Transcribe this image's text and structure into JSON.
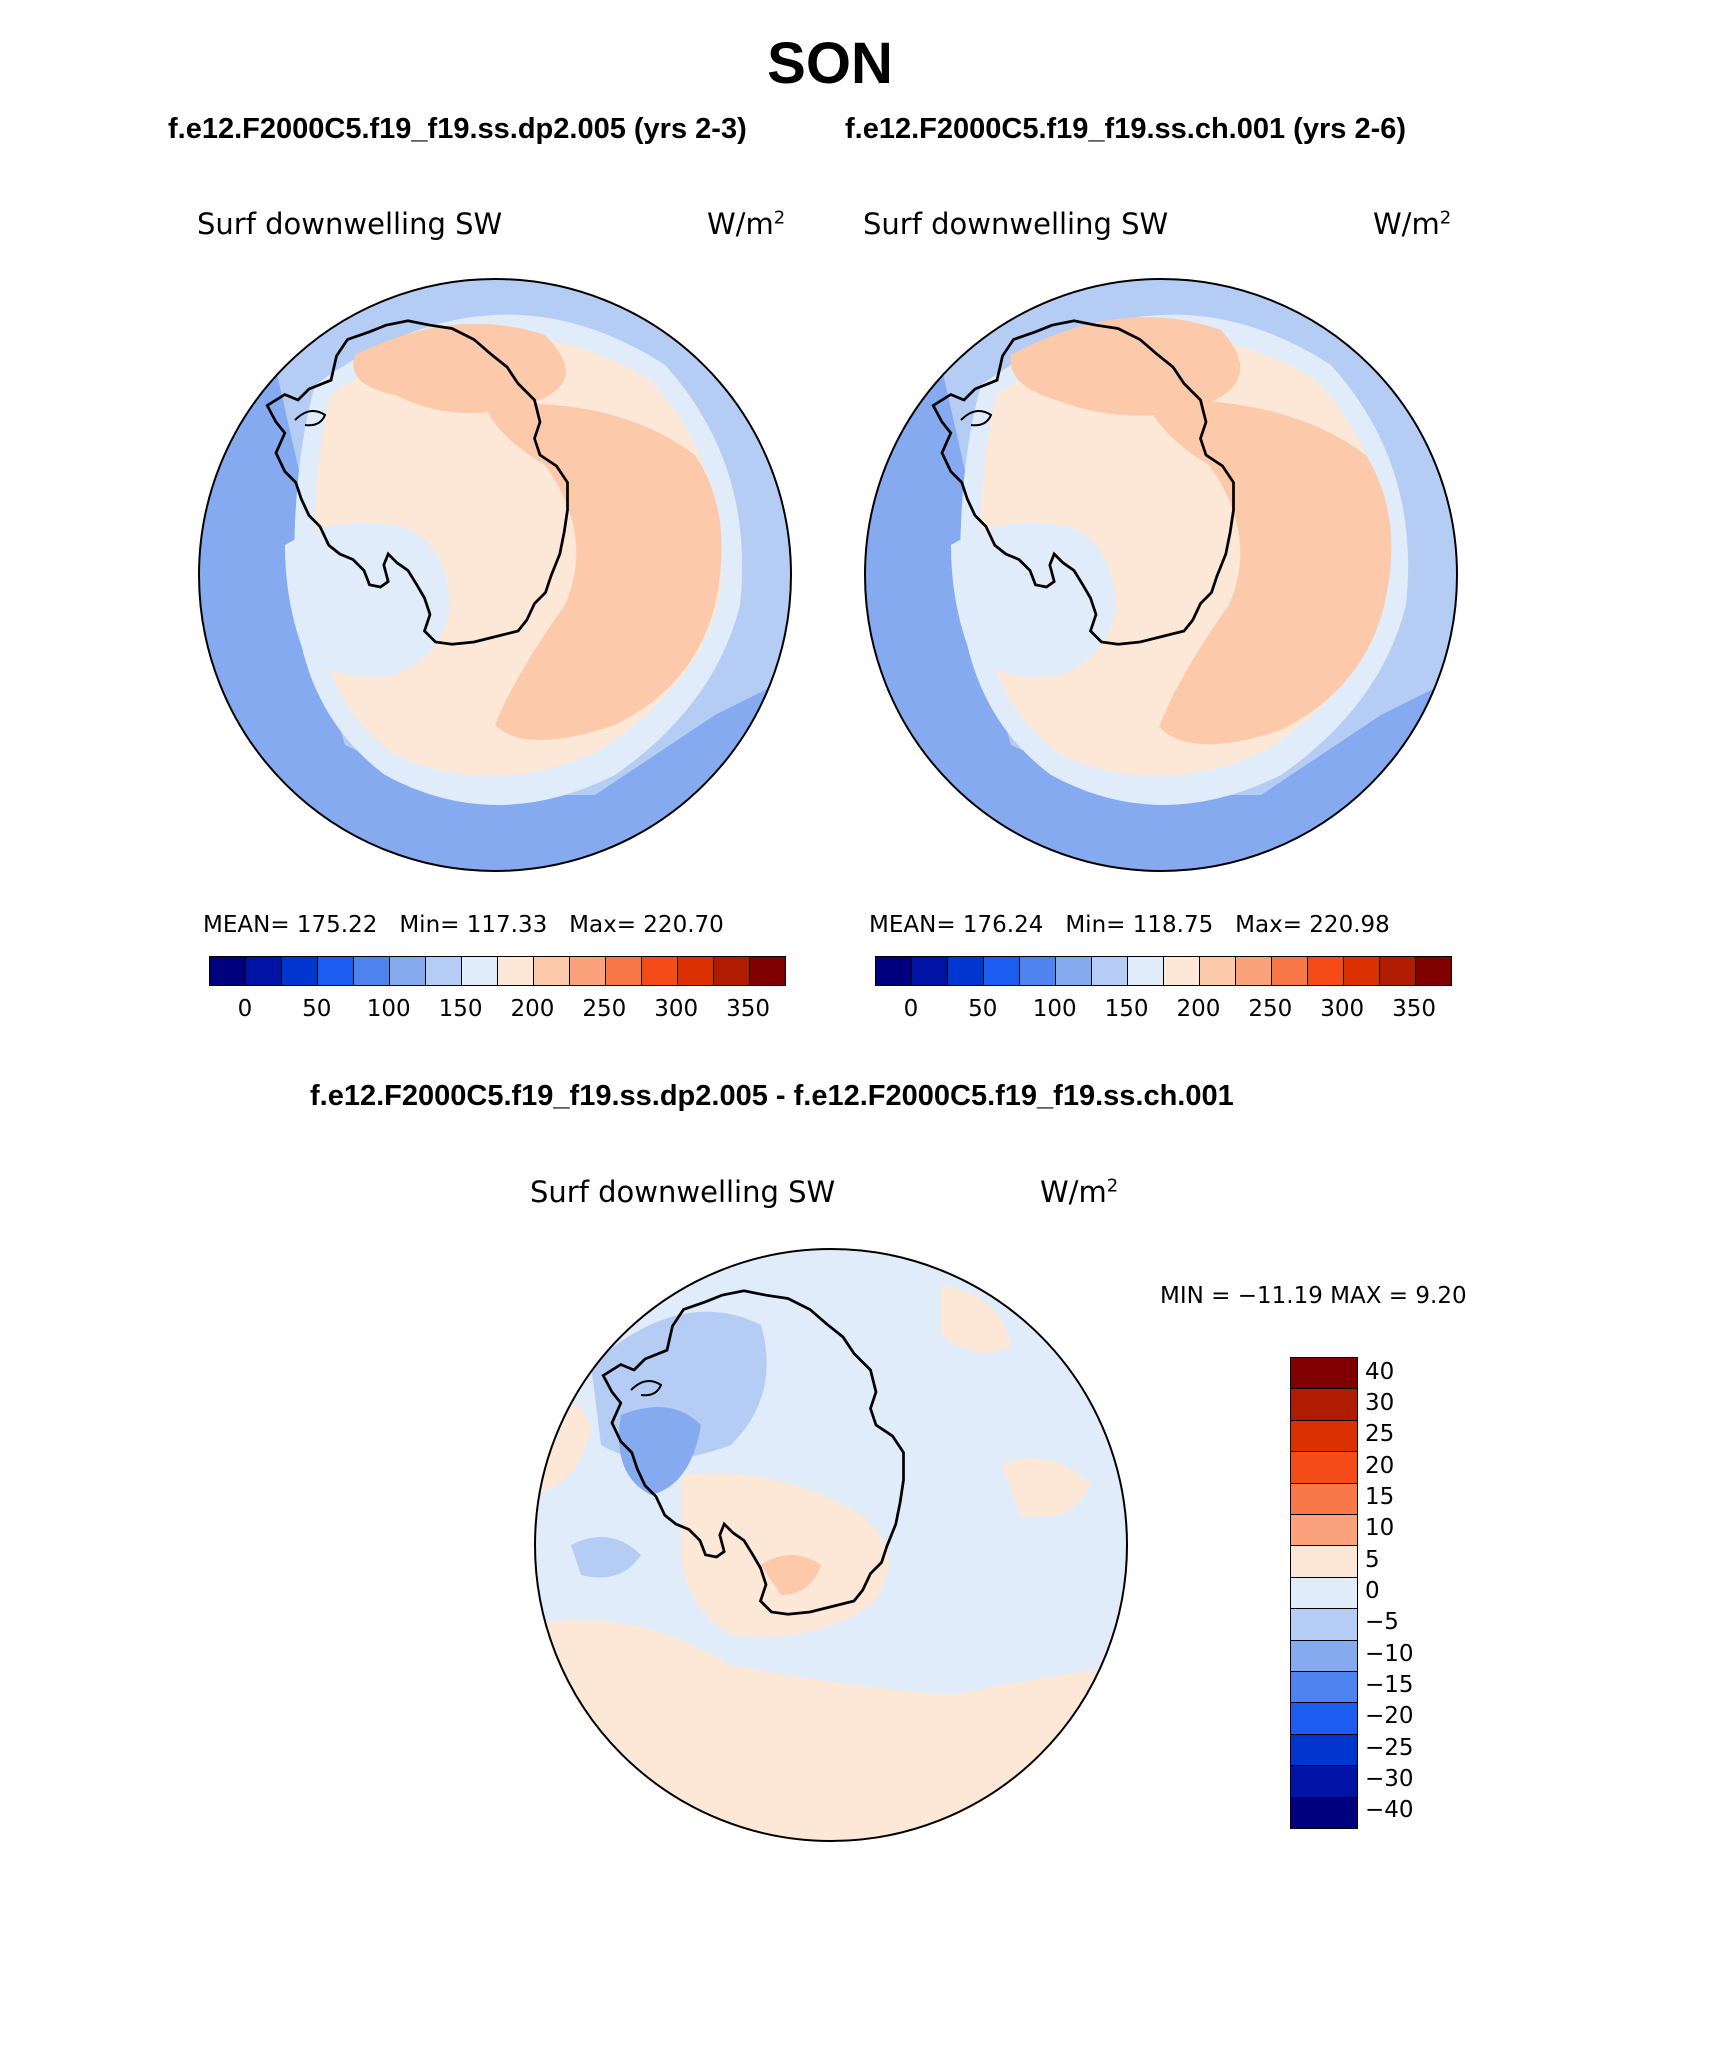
{
  "page": {
    "title": "SON"
  },
  "top_titles": {
    "left": "f.e12.F2000C5.f19_f19.ss.dp2.005 (yrs 2-3)",
    "right": "f.e12.F2000C5.f19_f19.ss.ch.001 (yrs 2-6)"
  },
  "diff_title": "f.e12.F2000C5.f19_f19.ss.dp2.005 - f.e12.F2000C5.f19_f19.ss.ch.001",
  "panels": [
    {
      "variable": "Surf downwelling SW",
      "units": "W/m",
      "units_sup": "2",
      "mean_label": "MEAN=",
      "mean": "175.22",
      "min_label": "Min=",
      "min": "117.33",
      "max_label": "Max=",
      "max": "220.70"
    },
    {
      "variable": "Surf downwelling SW",
      "units": "W/m",
      "units_sup": "2",
      "mean_label": "MEAN=",
      "mean": "176.24",
      "min_label": "Min=",
      "min": "118.75",
      "max_label": "Max=",
      "max": "220.98"
    }
  ],
  "diff_panel": {
    "variable": "Surf downwelling SW",
    "units": "W/m",
    "units_sup": "2",
    "minmax": "MIN = −11.19 MAX =    9.20"
  },
  "abs_colorbar": {
    "colors": [
      "#00007f",
      "#0013a5",
      "#0036d0",
      "#1c5cf0",
      "#4f83ef",
      "#85aaf0",
      "#b5cdf5",
      "#e1ecfa",
      "#fde7d6",
      "#fcc9ab",
      "#fba17b",
      "#fa7747",
      "#f54b18",
      "#db3100",
      "#b01c00",
      "#800000"
    ],
    "labels": [
      "0",
      "50",
      "100",
      "150",
      "200",
      "250",
      "300",
      "350"
    ]
  },
  "diff_colorbar": {
    "colors": [
      "#800000",
      "#b01c00",
      "#db3100",
      "#f54b18",
      "#fa7747",
      "#fba17b",
      "#fde7d6",
      "#e1ecfa",
      "#b5cdf5",
      "#85aaf0",
      "#4f83ef",
      "#1c5cf0",
      "#0036d0",
      "#0013a5",
      "#00007f"
    ],
    "labels": [
      "40",
      "30",
      "25",
      "20",
      "15",
      "10",
      "5",
      "0",
      "−5",
      "−10",
      "−15",
      "−20",
      "−25",
      "−30",
      "−40"
    ]
  },
  "palette": {
    "ocean_mid": "#b5cdf5",
    "ocean_dark": "#85aaf0",
    "pale_blue": "#e1ecfa",
    "peach_light": "#fde7d6",
    "peach": "#fcc9ab",
    "coast": "#000000"
  }
}
